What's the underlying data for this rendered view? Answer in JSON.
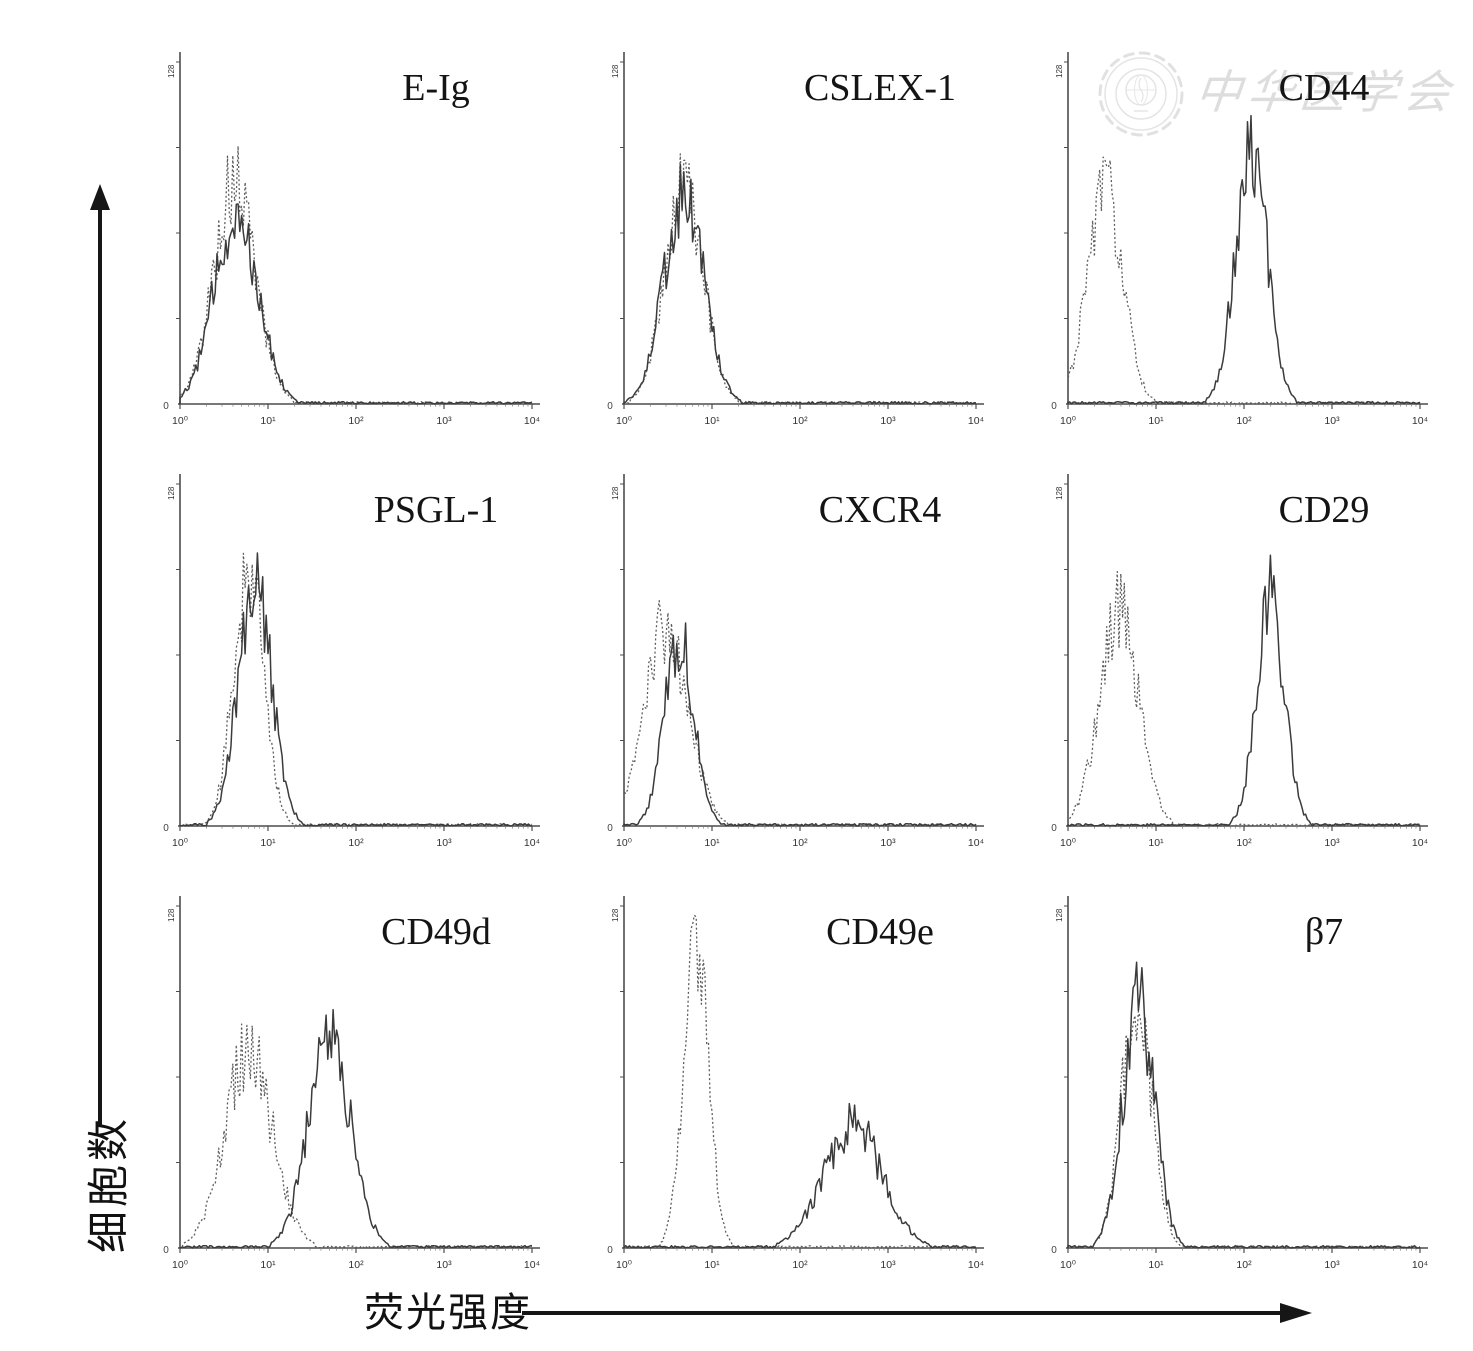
{
  "figure": {
    "y_axis_label": "细胞数",
    "x_axis_label": "荧光强度",
    "watermark_text": "中华医学会"
  },
  "chart_data": {
    "type": "line",
    "subtype": "flow-cytometry-histogram-overlay",
    "layout": "3x3-grid",
    "x_axis": {
      "scale": "log10",
      "range_log": [
        0,
        4
      ],
      "tick_labels": [
        "10⁰",
        "10¹",
        "10²",
        "10³",
        "10⁴"
      ],
      "label": "荧光强度"
    },
    "y_axis": {
      "label": "细胞数",
      "max_label": "128",
      "origin_label": "0"
    },
    "panels": [
      {
        "title": "E-Ig",
        "series": [
          {
            "name": "dotted-trace",
            "style": "dotted",
            "peak_log": 0.62,
            "sigma_log": 0.24,
            "height": 0.64
          },
          {
            "name": "solid-trace",
            "style": "solid",
            "peak_log": 0.64,
            "sigma_log": 0.25,
            "height": 0.56
          }
        ]
      },
      {
        "title": "CSLEX-1",
        "series": [
          {
            "name": "dotted-trace",
            "style": "dotted",
            "peak_log": 0.68,
            "sigma_log": 0.22,
            "height": 0.63
          },
          {
            "name": "solid-trace",
            "style": "solid",
            "peak_log": 0.68,
            "sigma_log": 0.23,
            "height": 0.6
          }
        ]
      },
      {
        "title": "CD44",
        "series": [
          {
            "name": "dotted-trace",
            "style": "dotted",
            "peak_log": 0.42,
            "sigma_log": 0.2,
            "height": 0.63
          },
          {
            "name": "solid-trace",
            "style": "solid",
            "peak_log": 2.08,
            "sigma_log": 0.18,
            "height": 0.74
          }
        ]
      },
      {
        "title": "PSGL-1",
        "series": [
          {
            "name": "dotted-trace",
            "style": "dotted",
            "peak_log": 0.78,
            "sigma_log": 0.17,
            "height": 0.75
          },
          {
            "name": "solid-trace",
            "style": "solid",
            "peak_log": 0.85,
            "sigma_log": 0.19,
            "height": 0.7
          }
        ]
      },
      {
        "title": "CXCR4",
        "series": [
          {
            "name": "dotted-trace",
            "style": "dotted",
            "peak_log": 0.48,
            "sigma_log": 0.25,
            "height": 0.58
          },
          {
            "name": "solid-trace",
            "style": "solid",
            "peak_log": 0.63,
            "sigma_log": 0.17,
            "height": 0.54
          }
        ]
      },
      {
        "title": "CD29",
        "series": [
          {
            "name": "dotted-trace",
            "style": "dotted",
            "peak_log": 0.58,
            "sigma_log": 0.22,
            "height": 0.63
          },
          {
            "name": "solid-trace",
            "style": "solid",
            "peak_log": 2.3,
            "sigma_log": 0.16,
            "height": 0.67
          }
        ]
      },
      {
        "title": "CD49d",
        "series": [
          {
            "name": "dotted-trace",
            "style": "dotted",
            "peak_log": 0.78,
            "sigma_log": 0.27,
            "height": 0.57
          },
          {
            "name": "solid-trace",
            "style": "solid",
            "peak_log": 1.7,
            "sigma_log": 0.24,
            "height": 0.61
          }
        ]
      },
      {
        "title": "CD49e",
        "series": [
          {
            "name": "dotted-trace",
            "style": "dotted",
            "peak_log": 0.82,
            "sigma_log": 0.14,
            "height": 0.91
          },
          {
            "name": "solid-trace",
            "style": "solid",
            "peak_log": 2.6,
            "sigma_log": 0.33,
            "height": 0.36
          }
        ]
      },
      {
        "title": "β7",
        "series": [
          {
            "name": "dotted-trace",
            "style": "dotted",
            "peak_log": 0.78,
            "sigma_log": 0.17,
            "height": 0.74
          },
          {
            "name": "solid-trace",
            "style": "solid",
            "peak_log": 0.8,
            "sigma_log": 0.18,
            "height": 0.71
          }
        ]
      }
    ]
  }
}
